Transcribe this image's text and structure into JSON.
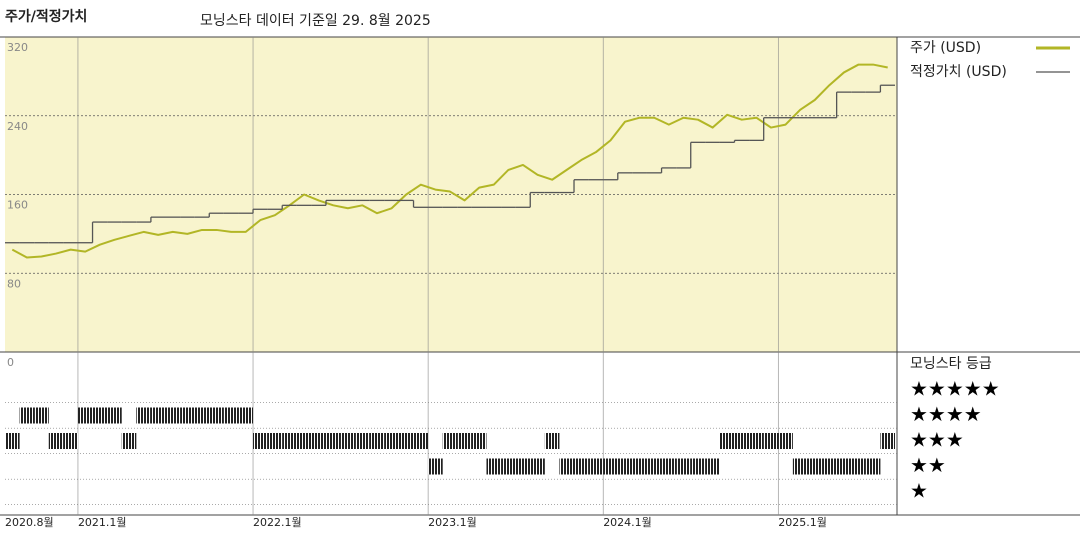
{
  "chart_data": {
    "type": "line",
    "title": "주가/적정가치",
    "subtitle": "모닝스타 데이터 기준일 29. 8월 2025",
    "x": [
      "2020-08",
      "2020-09",
      "2020-10",
      "2020-11",
      "2020-12",
      "2021-01",
      "2021-02",
      "2021-03",
      "2021-04",
      "2021-05",
      "2021-06",
      "2021-07",
      "2021-08",
      "2021-09",
      "2021-10",
      "2021-11",
      "2021-12",
      "2022-01",
      "2022-02",
      "2022-03",
      "2022-04",
      "2022-05",
      "2022-06",
      "2022-07",
      "2022-08",
      "2022-09",
      "2022-10",
      "2022-11",
      "2022-12",
      "2023-01",
      "2023-02",
      "2023-03",
      "2023-04",
      "2023-05",
      "2023-06",
      "2023-07",
      "2023-08",
      "2023-09",
      "2023-10",
      "2023-11",
      "2023-12",
      "2024-01",
      "2024-02",
      "2024-03",
      "2024-04",
      "2024-05",
      "2024-06",
      "2024-07",
      "2024-08",
      "2024-09",
      "2024-10",
      "2024-11",
      "2024-12",
      "2025-01",
      "2025-02",
      "2025-03",
      "2025-04",
      "2025-05",
      "2025-06",
      "2025-07",
      "2025-08"
    ],
    "xlim": [
      "2020-08",
      "2025-09"
    ],
    "xticks": [
      {
        "value": "2020-08",
        "label": "2020.8월"
      },
      {
        "value": "2021-01",
        "label": "2021.1월"
      },
      {
        "value": "2022-01",
        "label": "2022.1월"
      },
      {
        "value": "2023-01",
        "label": "2023.1월"
      },
      {
        "value": "2024-01",
        "label": "2024.1월"
      },
      {
        "value": "2025-01",
        "label": "2025.1월"
      }
    ],
    "ylim": [
      0,
      320
    ],
    "yticks": [
      0,
      80,
      160,
      240,
      320
    ],
    "grid": true,
    "series": [
      {
        "name": "주가 (USD)",
        "color": "#b2b626",
        "step": false,
        "values": [
          104,
          96,
          97,
          100,
          104,
          102,
          109,
          114,
          118,
          122,
          119,
          122,
          120,
          124,
          124,
          122,
          122,
          134,
          139,
          149,
          160,
          154,
          149,
          146,
          149,
          141,
          146,
          160,
          170,
          165,
          163,
          154,
          167,
          170,
          185,
          190,
          180,
          175,
          185,
          195,
          203,
          215,
          234,
          238,
          238,
          231,
          238,
          236,
          228,
          241,
          236,
          238,
          228,
          231,
          246,
          256,
          271,
          284,
          292,
          292,
          289
        ]
      },
      {
        "name": "적정가치 (USD)",
        "color": "#555555",
        "step": true,
        "values": [
          111,
          111,
          111,
          111,
          111,
          111,
          132,
          132,
          132,
          132,
          137,
          137,
          137,
          137,
          141,
          141,
          141,
          145,
          145,
          149,
          149,
          149,
          154,
          154,
          154,
          154,
          154,
          154,
          147,
          147,
          147,
          147,
          147,
          147,
          147,
          147,
          162,
          162,
          162,
          175,
          175,
          175,
          182,
          182,
          182,
          187,
          187,
          213,
          213,
          213,
          215,
          215,
          238,
          238,
          238,
          238,
          238,
          264,
          264,
          264,
          271
        ]
      }
    ],
    "rating": {
      "title": "모닝스타 등급",
      "color": "#222222",
      "levels": [
        {
          "value": 5,
          "label": "★★★★★"
        },
        {
          "value": 4,
          "label": "★★★★"
        },
        {
          "value": 3,
          "label": "★★★"
        },
        {
          "value": 2,
          "label": "★★"
        },
        {
          "value": 1,
          "label": "★"
        }
      ],
      "values": [
        3,
        4,
        4,
        3,
        3,
        4,
        4,
        4,
        3,
        4,
        4,
        4,
        4,
        4,
        4,
        4,
        4,
        3,
        3,
        3,
        3,
        3,
        3,
        3,
        3,
        3,
        3,
        3,
        3,
        2,
        3,
        3,
        3,
        2,
        2,
        2,
        2,
        3,
        2,
        2,
        2,
        2,
        2,
        2,
        2,
        2,
        2,
        2,
        2,
        3,
        3,
        3,
        3,
        3,
        2,
        2,
        2,
        2,
        2,
        2,
        3
      ]
    }
  }
}
